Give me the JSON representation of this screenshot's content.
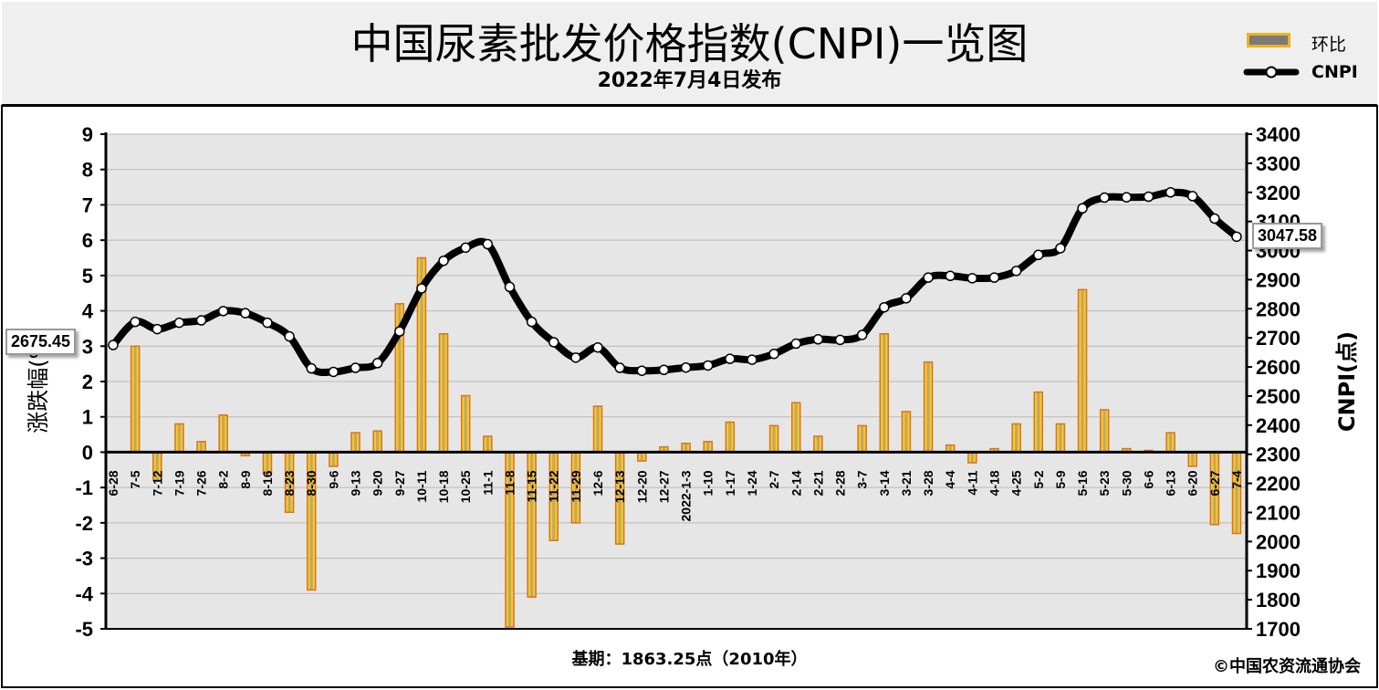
{
  "title": "中国尿素批发价格指数(CNPI)一览图",
  "subtitle": "2022年7月4日发布",
  "legend": {
    "bar_label": "环比",
    "line_label": "CNPI"
  },
  "left_axis_label": "涨跌幅(%)",
  "right_axis_label": "CNPI(点)",
  "footer_base": "基期：1863.25点（2010年）",
  "footer_copyright": "©中国农资流通协会",
  "callouts": {
    "first": "2675.45",
    "last": "3047.58"
  },
  "colors": {
    "bar_fill": "#f5c832",
    "bar_edge": "#d9731a",
    "bar_core": "#8a8a8a",
    "line": "#000000",
    "marker": "#ffffff",
    "grid": "#b9b9b9",
    "plot_bg": "#e6e6e6"
  },
  "chart_data": {
    "type": "bar+line",
    "categories": [
      "6-28",
      "7-5",
      "7-12",
      "7-19",
      "7-26",
      "8-2",
      "8-9",
      "8-16",
      "8-23",
      "8-30",
      "9-6",
      "9-13",
      "9-20",
      "9-27",
      "10-11",
      "10-18",
      "10-25",
      "11-1",
      "11-8",
      "11-15",
      "11-22",
      "11-29",
      "12-6",
      "12-13",
      "12-20",
      "12-27",
      "2022-1-3",
      "1-10",
      "1-17",
      "1-24",
      "2-7",
      "2-14",
      "2-21",
      "2-28",
      "3-7",
      "3-14",
      "3-21",
      "3-28",
      "4-4",
      "4-11",
      "4-18",
      "4-25",
      "5-2",
      "5-9",
      "5-16",
      "5-23",
      "5-30",
      "6-6",
      "6-13",
      "6-20",
      "6-27",
      "7-4"
    ],
    "series": [
      {
        "name": "环比",
        "axis": "left",
        "values": [
          0,
          3.0,
          -0.8,
          0.8,
          0.3,
          1.05,
          -0.1,
          -0.6,
          -1.7,
          -3.9,
          -0.4,
          0.55,
          0.6,
          4.2,
          5.5,
          3.35,
          1.6,
          0.45,
          -4.95,
          -4.1,
          -2.5,
          -2.0,
          1.3,
          -2.6,
          -0.25,
          0.15,
          0.25,
          0.3,
          0.85,
          0.0,
          0.75,
          1.4,
          0.45,
          0.0,
          0.75,
          3.35,
          1.15,
          2.55,
          0.2,
          -0.3,
          0.1,
          0.8,
          1.7,
          0.8,
          4.6,
          1.2,
          0.1,
          0.05,
          0.55,
          -0.4,
          -2.05,
          -2.3
        ]
      },
      {
        "name": "CNPI",
        "axis": "right",
        "values": [
          2675.45,
          2755,
          2730,
          2752,
          2760,
          2792,
          2785,
          2752,
          2705,
          2595,
          2583,
          2597,
          2613,
          2722,
          2870,
          2965,
          3010,
          3022,
          2875,
          2755,
          2685,
          2632,
          2667,
          2597,
          2587,
          2590,
          2598,
          2605,
          2628,
          2625,
          2645,
          2680,
          2695,
          2693,
          2710,
          2805,
          2836,
          2907,
          2913,
          2905,
          2907,
          2930,
          2985,
          3008,
          3145,
          3182,
          3183,
          3185,
          3200,
          3187,
          3110,
          3047.58
        ]
      }
    ],
    "y_left": {
      "min": -5,
      "max": 9,
      "ticks": [
        9,
        8,
        7,
        6,
        5,
        4,
        3,
        2,
        1,
        0,
        -1,
        -2,
        -3,
        -4,
        -5
      ]
    },
    "y_right": {
      "min": 1700,
      "max": 3400,
      "ticks": [
        3400,
        3300,
        3200,
        3100,
        3000,
        2900,
        2800,
        2700,
        2600,
        2500,
        2400,
        2300,
        2200,
        2100,
        2000,
        1900,
        1800,
        1700
      ]
    },
    "grid": true,
    "legend_position": "top-right"
  }
}
